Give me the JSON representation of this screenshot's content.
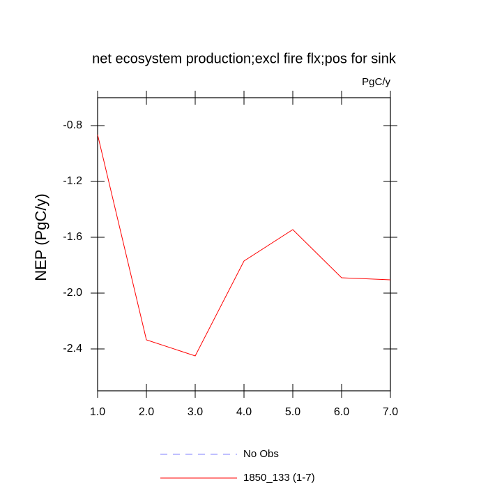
{
  "chart_data": {
    "type": "line",
    "title": "net ecosystem production;excl fire flx;pos for sink",
    "units": "PgC/y",
    "y_label": "NEP  (PgC/y)",
    "x": [
      1,
      2,
      3,
      4,
      5,
      6,
      7
    ],
    "series": [
      {
        "name": "No Obs",
        "color": "#8080ff",
        "dashed": true,
        "values": [
          null,
          null,
          null,
          null,
          null,
          null,
          null
        ]
      },
      {
        "name": "1850_133 (1-7)",
        "color": "#ff0000",
        "dashed": false,
        "values": [
          -0.865,
          -2.335,
          -2.45,
          -1.77,
          -1.545,
          -1.89,
          -1.905
        ]
      }
    ],
    "xlim": [
      1,
      7
    ],
    "xticks": [
      {
        "value": 1,
        "label": "1.0"
      },
      {
        "value": 2,
        "label": "2.0"
      },
      {
        "value": 3,
        "label": "3.0"
      },
      {
        "value": 4,
        "label": "4.0"
      },
      {
        "value": 5,
        "label": "5.0"
      },
      {
        "value": 6,
        "label": "6.0"
      },
      {
        "value": 7,
        "label": "7.0"
      }
    ],
    "ylim": [
      -2.7,
      -0.6
    ],
    "yticks": [
      -2.4,
      {
        "value": -2,
        "label": "-2.0"
      },
      -1.6,
      -1.2,
      -0.8
    ],
    "grid": false
  }
}
